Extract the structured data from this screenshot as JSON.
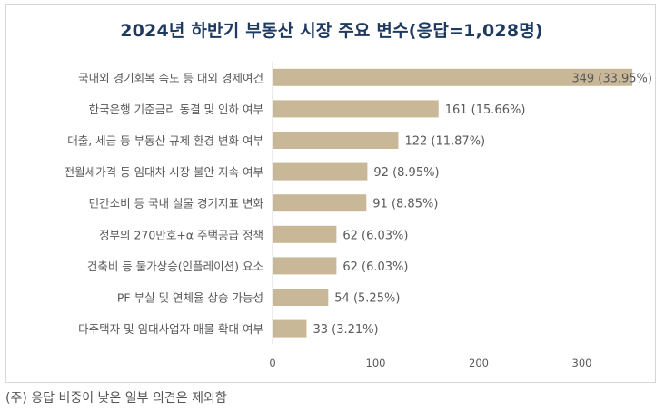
{
  "chart_data": {
    "type": "bar",
    "orientation": "horizontal",
    "title": "2024년 하반기 부동산 시장 주요 변수(응답=1,028명)",
    "xlim": [
      0,
      350
    ],
    "xticks": [
      0,
      100,
      200,
      300
    ],
    "categories": [
      "국내외 경기회복 속도 등 대외 경제여건",
      "한국은행 기준금리 동결 및 인하 여부",
      "대출, 세금 등 부동산 규제 환경 변화 여부",
      "전월세가격 등 임대차 시장 불안 지속 여부",
      "민간소비 등 국내 실물 경기지표 변화",
      "정부의 270만호+α 주택공급 정책",
      "건축비 등 물가상승(인플레이션) 요소",
      "PF 부실 및 연체율 상승 가능성",
      "다주택자 및 임대사업자 매물 확대 여부"
    ],
    "values": [
      349,
      161,
      122,
      92,
      91,
      62,
      62,
      54,
      33
    ],
    "data_labels": [
      "349 (33.95%)",
      "161 (15.66%)",
      "122 (11.87%)",
      "92 (8.95%)",
      "91 (8.85%)",
      "62 (6.03%)",
      "62 (6.03%)",
      "54 (5.25%)",
      "33 (3.21%)"
    ],
    "bar_color": "#c9b898",
    "label_color": "#595959",
    "tick_color": "#595959"
  },
  "footnote": "(주) 응답 비중이 낮은 일부 의견은 제외함"
}
